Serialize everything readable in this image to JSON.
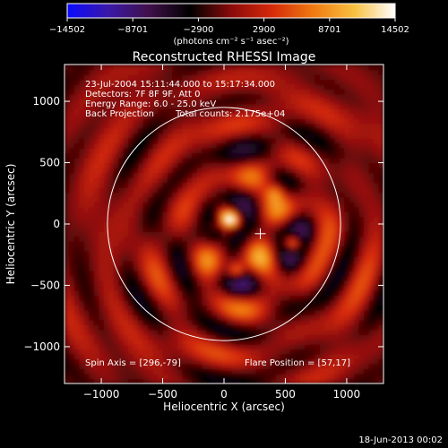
{
  "chart_data": {
    "type": "heatmap",
    "title": "Reconstructed RHESSI Image",
    "xlabel": "Heliocentric X (arcsec)",
    "ylabel": "Heliocentric Y (arcsec)",
    "xlim": [
      -1300,
      1300
    ],
    "ylim": [
      -1300,
      1300
    ],
    "xticks": [
      -1000,
      -500,
      0,
      500,
      1000
    ],
    "xtick_labels": [
      "−1000",
      "−500",
      "0",
      "500",
      "1000"
    ],
    "yticks": [
      -1000,
      -500,
      0,
      500,
      1000
    ],
    "ytick_labels": [
      "−1000",
      "−500",
      "0",
      "500",
      "1000"
    ],
    "colorbar": {
      "ticks": [
        "−14502",
        "−8701",
        "−2900",
        "2900",
        "8701",
        "14502"
      ],
      "min": -14502,
      "max": 14502,
      "units": "(photons cm⁻² s⁻¹ asec⁻²)",
      "colors": [
        "#0a0aff",
        "#3a18a8",
        "#40104a",
        "#000000",
        "#8a0a0a",
        "#d62a0a",
        "#f07a10",
        "#f8c040",
        "#ffffff"
      ]
    },
    "annotations": [
      "23-Jul-2004 15:11:44.000 to 15:17:34.000",
      "Detectors: 7F 8F 9F, Att 0",
      "Energy Range: 6.0 - 25.0 keV",
      "Back Projection",
      "Total counts: 2.175e+04"
    ],
    "spin_axis": "Spin Axis = [296,-79]",
    "flare_position": "Flare Position = [57,17]",
    "solar_limb_radius": 950,
    "solar_limb_center": [
      0,
      0
    ],
    "marker_plus": [
      296,
      -79
    ],
    "sources": [
      {
        "x": 50,
        "y": 50,
        "peak": 14502
      },
      {
        "x": 560,
        "y": -150,
        "peak": 9500
      },
      {
        "x": 100,
        "y": -380,
        "peak": 8000
      },
      {
        "x": 420,
        "y": 260,
        "peak": 6500
      }
    ],
    "grid": false
  },
  "footer": {
    "timestamp": "18-Jun-2013 00:02"
  }
}
